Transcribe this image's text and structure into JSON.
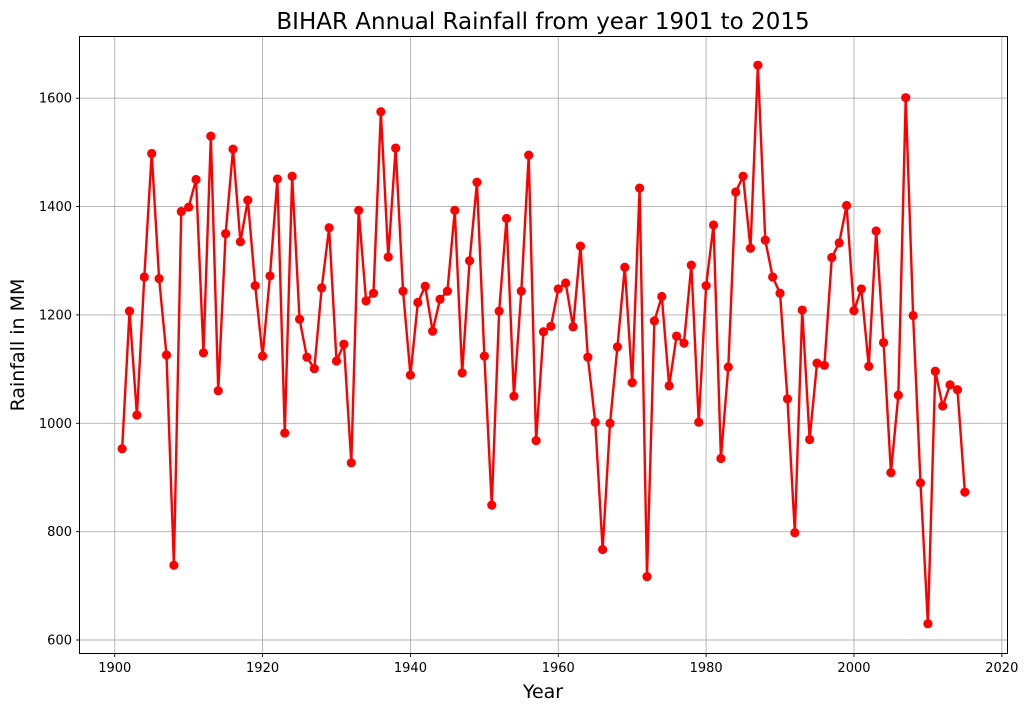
{
  "chart_data": {
    "type": "line",
    "title": "BIHAR Annual Rainfall from year 1901 to 2015",
    "xlabel": "Year",
    "ylabel": "Rainfall in MM",
    "xlim": [
      1895.3,
      2020.7
    ],
    "ylim": [
      576,
      1713
    ],
    "xticks": [
      1900,
      1920,
      1940,
      1960,
      1980,
      2000,
      2020
    ],
    "yticks": [
      600,
      800,
      1000,
      1200,
      1400,
      1600
    ],
    "grid": true,
    "legend": "none",
    "series_color": "#ff0000",
    "marker": "circle",
    "x": [
      1901,
      1902,
      1903,
      1904,
      1905,
      1906,
      1907,
      1908,
      1909,
      1910,
      1911,
      1912,
      1913,
      1914,
      1915,
      1916,
      1917,
      1918,
      1919,
      1920,
      1921,
      1922,
      1923,
      1924,
      1925,
      1926,
      1927,
      1928,
      1929,
      1930,
      1931,
      1932,
      1933,
      1934,
      1935,
      1936,
      1937,
      1938,
      1939,
      1940,
      1941,
      1942,
      1943,
      1944,
      1945,
      1946,
      1947,
      1948,
      1949,
      1950,
      1951,
      1952,
      1953,
      1954,
      1955,
      1956,
      1957,
      1958,
      1959,
      1960,
      1961,
      1962,
      1963,
      1964,
      1965,
      1966,
      1967,
      1968,
      1969,
      1970,
      1971,
      1972,
      1973,
      1974,
      1975,
      1976,
      1977,
      1978,
      1979,
      1980,
      1981,
      1982,
      1983,
      1984,
      1985,
      1986,
      1987,
      1988,
      1989,
      1990,
      1991,
      1992,
      1993,
      1994,
      1995,
      1996,
      1997,
      1998,
      1999,
      2000,
      2001,
      2002,
      2003,
      2004,
      2005,
      2006,
      2007,
      2008,
      2009,
      2010,
      2011,
      2012,
      2013,
      2014,
      2015
    ],
    "y": [
      953,
      1207,
      1015,
      1270,
      1498,
      1267,
      1126,
      738,
      1391,
      1399,
      1450,
      1130,
      1530,
      1060,
      1350,
      1506,
      1335,
      1412,
      1254,
      1124,
      1272,
      1451,
      982,
      1456,
      1192,
      1122,
      1101,
      1250,
      1361,
      1115,
      1146,
      927,
      1393,
      1226,
      1240,
      1575,
      1307,
      1508,
      1244,
      1089,
      1223,
      1253,
      1170,
      1229,
      1244,
      1393,
      1093,
      1300,
      1445,
      1124,
      849,
      1207,
      1378,
      1050,
      1244,
      1495,
      968,
      1169,
      1179,
      1248,
      1259,
      1178,
      1327,
      1122,
      1002,
      767,
      1000,
      1141,
      1288,
      1075,
      1434,
      717,
      1189,
      1234,
      1069,
      1161,
      1148,
      1292,
      1002,
      1254,
      1366,
      935,
      1104,
      1427,
      1456,
      1323,
      1661,
      1338,
      1270,
      1240,
      1045,
      798,
      1209,
      970,
      1111,
      1107,
      1306,
      1333,
      1402,
      1208,
      1248,
      1105,
      1355,
      1149,
      909,
      1052,
      1601,
      1199,
      890,
      630,
      1096,
      1032,
      1071,
      1062,
      873
    ]
  }
}
